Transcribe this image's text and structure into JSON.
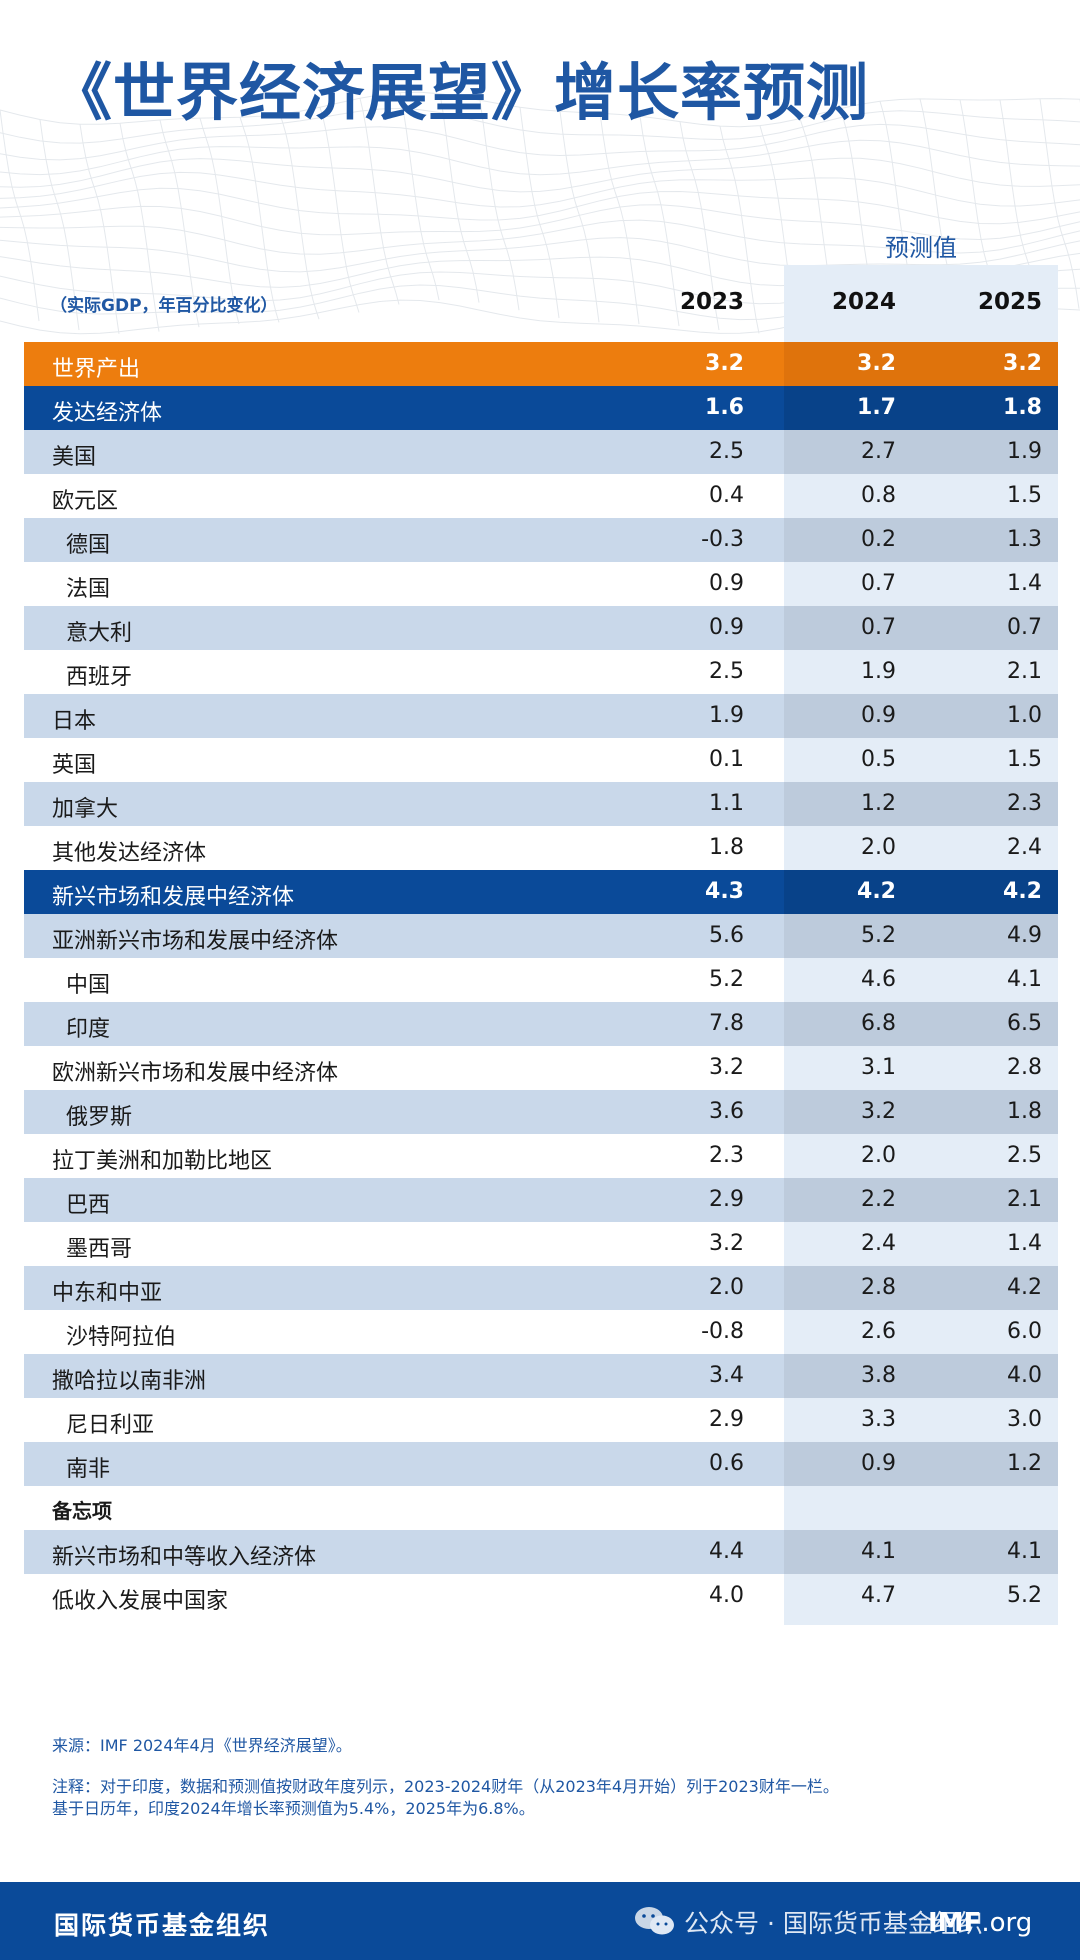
{
  "title": "《世界经济展望》增长率预测",
  "forecast_label": "预测值",
  "unit_note": "（实际GDP，年百分比变化）",
  "years": [
    "2023",
    "2024",
    "2025"
  ],
  "rows": [
    {
      "label": "世界产出",
      "values": [
        "3.2",
        "3.2",
        "3.2"
      ]
    },
    {
      "label": "发达经济体",
      "values": [
        "1.6",
        "1.7",
        "1.8"
      ]
    },
    {
      "label": "美国",
      "values": [
        "2.5",
        "2.7",
        "1.9"
      ]
    },
    {
      "label": "欧元区",
      "values": [
        "0.4",
        "0.8",
        "1.5"
      ]
    },
    {
      "label": "德国",
      "values": [
        "-0.3",
        "0.2",
        "1.3"
      ]
    },
    {
      "label": "法国",
      "values": [
        "0.9",
        "0.7",
        "1.4"
      ]
    },
    {
      "label": "意大利",
      "values": [
        "0.9",
        "0.7",
        "0.7"
      ]
    },
    {
      "label": "西班牙",
      "values": [
        "2.5",
        "1.9",
        "2.1"
      ]
    },
    {
      "label": "日本",
      "values": [
        "1.9",
        "0.9",
        "1.0"
      ]
    },
    {
      "label": "英国",
      "values": [
        "0.1",
        "0.5",
        "1.5"
      ]
    },
    {
      "label": "加拿大",
      "values": [
        "1.1",
        "1.2",
        "2.3"
      ]
    },
    {
      "label": "其他发达经济体",
      "values": [
        "1.8",
        "2.0",
        "2.4"
      ]
    },
    {
      "label": "新兴市场和发展中经济体",
      "values": [
        "4.3",
        "4.2",
        "4.2"
      ]
    },
    {
      "label": "亚洲新兴市场和发展中经济体",
      "values": [
        "5.6",
        "5.2",
        "4.9"
      ]
    },
    {
      "label": "中国",
      "values": [
        "5.2",
        "4.6",
        "4.1"
      ]
    },
    {
      "label": "印度",
      "values": [
        "7.8",
        "6.8",
        "6.5"
      ]
    },
    {
      "label": "欧洲新兴市场和发展中经济体",
      "values": [
        "3.2",
        "3.1",
        "2.8"
      ]
    },
    {
      "label": "俄罗斯",
      "values": [
        "3.6",
        "3.2",
        "1.8"
      ]
    },
    {
      "label": "拉丁美洲和加勒比地区",
      "values": [
        "2.3",
        "2.0",
        "2.5"
      ]
    },
    {
      "label": "巴西",
      "values": [
        "2.9",
        "2.2",
        "2.1"
      ]
    },
    {
      "label": "墨西哥",
      "values": [
        "3.2",
        "2.4",
        "1.4"
      ]
    },
    {
      "label": "中东和中亚",
      "values": [
        "2.0",
        "2.8",
        "4.2"
      ]
    },
    {
      "label": "沙特阿拉伯",
      "values": [
        "-0.8",
        "2.6",
        "6.0"
      ]
    },
    {
      "label": "撒哈拉以南非洲",
      "values": [
        "3.4",
        "3.8",
        "4.0"
      ]
    },
    {
      "label": "尼日利亚",
      "values": [
        "2.9",
        "3.3",
        "3.0"
      ]
    },
    {
      "label": "南非",
      "values": [
        "0.6",
        "0.9",
        "1.2"
      ]
    },
    {
      "label": "备忘项",
      "values": [
        "",
        "",
        ""
      ]
    },
    {
      "label": "新兴市场和中等收入经济体",
      "values": [
        "4.4",
        "4.1",
        "4.1"
      ]
    },
    {
      "label": "低收入发展中国家",
      "values": [
        "4.0",
        "4.7",
        "5.2"
      ]
    }
  ],
  "source": "来源：IMF 2024年4月《世界经济展望》。",
  "note_line1": "注释：对于印度，数据和预测值按财政年度列示，2023-2024财年（从2023年4月开始）列于2023财年一栏。",
  "note_line2": "基于日历年，印度2024年增长率预测值为5.4%，2025年为6.8%。",
  "footer": {
    "org": "国际货币基金组织",
    "wechat": "公众号 · 国际货币基金组织",
    "site_bold": "IMF",
    "site_rest": ".org"
  },
  "colors": {
    "brand_blue": "#0a4a99",
    "title_blue": "#1f57a3",
    "world_orange": "#ed7d0e",
    "stripe": "#c9d8ea",
    "forecast_band": "#e4edf7"
  },
  "icons": [
    "wechat-icon"
  ]
}
